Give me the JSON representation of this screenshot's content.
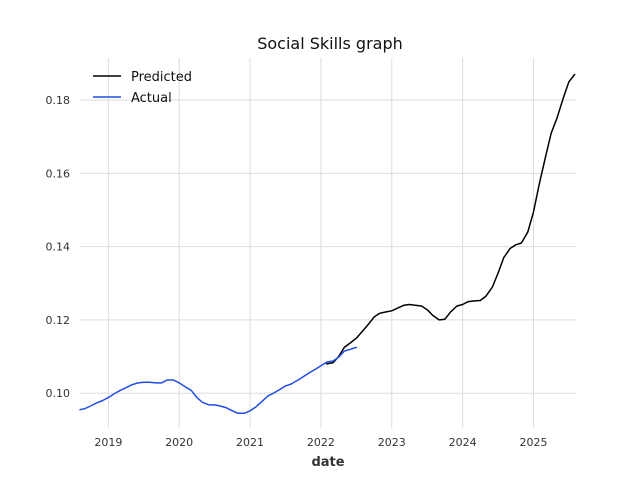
{
  "chart_data": {
    "type": "line",
    "title": "Social Skills graph",
    "xlabel": "date",
    "ylabel": "",
    "xlim": [
      2018.6,
      2025.6
    ],
    "ylim": [
      0.0905,
      0.1915
    ],
    "x_ticks": [
      2019,
      2020,
      2021,
      2022,
      2023,
      2024,
      2025
    ],
    "x_tick_labels": [
      "2019",
      "2020",
      "2021",
      "2022",
      "2023",
      "2024",
      "2025"
    ],
    "y_ticks": [
      0.1,
      0.12,
      0.14,
      0.16,
      0.18
    ],
    "y_tick_labels": [
      "0.10",
      "0.12",
      "0.14",
      "0.16",
      "0.18"
    ],
    "grid": true,
    "legend_position": "top-left",
    "series": [
      {
        "name": "Predicted",
        "color": "#000000",
        "x": [
          2022.08,
          2022.17,
          2022.25,
          2022.33,
          2022.42,
          2022.5,
          2022.58,
          2022.67,
          2022.75,
          2022.83,
          2022.92,
          2023.0,
          2023.08,
          2023.17,
          2023.25,
          2023.33,
          2023.42,
          2023.5,
          2023.58,
          2023.67,
          2023.75,
          2023.83,
          2023.92,
          2024.0,
          2024.08,
          2024.17,
          2024.25,
          2024.33,
          2024.42,
          2024.5,
          2024.58,
          2024.67,
          2024.75,
          2024.83,
          2024.92,
          2025.0,
          2025.08,
          2025.17,
          2025.25,
          2025.33,
          2025.42,
          2025.5,
          2025.58
        ],
        "y": [
          0.108,
          0.1083,
          0.11,
          0.1125,
          0.1138,
          0.115,
          0.1168,
          0.1188,
          0.1208,
          0.1218,
          0.1222,
          0.1225,
          0.1232,
          0.124,
          0.1242,
          0.124,
          0.1238,
          0.1228,
          0.1212,
          0.12,
          0.1202,
          0.1222,
          0.1238,
          0.1242,
          0.125,
          0.1252,
          0.1253,
          0.1265,
          0.129,
          0.1328,
          0.137,
          0.1395,
          0.1405,
          0.141,
          0.144,
          0.1495,
          0.157,
          0.1645,
          0.171,
          0.175,
          0.1805,
          0.185,
          0.187
        ]
      },
      {
        "name": "Actual",
        "color": "#1f4fe0",
        "x": [
          2018.6,
          2018.67,
          2018.75,
          2018.83,
          2018.92,
          2019.0,
          2019.08,
          2019.17,
          2019.25,
          2019.33,
          2019.42,
          2019.5,
          2019.58,
          2019.67,
          2019.75,
          2019.83,
          2019.92,
          2020.0,
          2020.08,
          2020.17,
          2020.25,
          2020.33,
          2020.42,
          2020.5,
          2020.58,
          2020.67,
          2020.75,
          2020.83,
          2020.92,
          2021.0,
          2021.08,
          2021.17,
          2021.25,
          2021.33,
          2021.42,
          2021.5,
          2021.58,
          2021.67,
          2021.75,
          2021.83,
          2021.92,
          2022.0,
          2022.08,
          2022.17,
          2022.25,
          2022.33,
          2022.42,
          2022.5
        ],
        "y": [
          0.0955,
          0.0958,
          0.0965,
          0.0973,
          0.098,
          0.0988,
          0.0998,
          0.1008,
          0.1015,
          0.1023,
          0.1028,
          0.103,
          0.103,
          0.1028,
          0.1028,
          0.1036,
          0.1036,
          0.1028,
          0.1018,
          0.1008,
          0.0988,
          0.0975,
          0.0968,
          0.0968,
          0.0965,
          0.096,
          0.0952,
          0.0945,
          0.0945,
          0.0952,
          0.0962,
          0.0978,
          0.0992,
          0.1,
          0.101,
          0.102,
          0.1025,
          0.1035,
          0.1045,
          0.1055,
          0.1065,
          0.1075,
          0.1085,
          0.1088,
          0.1098,
          0.1115,
          0.112,
          0.1125
        ]
      }
    ]
  }
}
